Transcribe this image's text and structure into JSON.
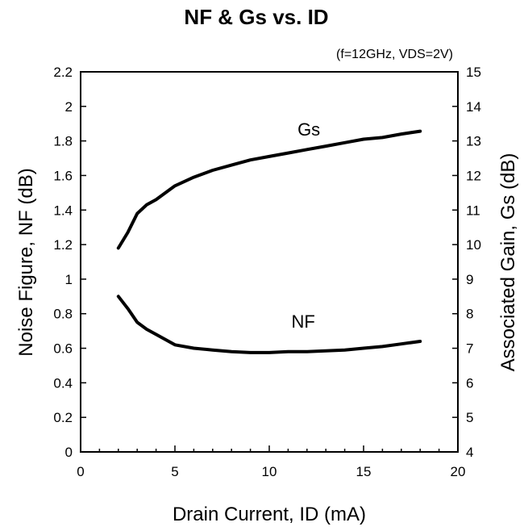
{
  "chart_data": {
    "type": "line",
    "title": "NF & Gs vs. ID",
    "condition": "(f=12GHz, VDS=2V)",
    "xlabel": "Drain Current, ID (mA)",
    "ylabel_left": "Noise Figure, NF (dB)",
    "ylabel_right": "Associated Gain, Gs (dB)",
    "xlim": [
      0,
      20
    ],
    "ylim_left": [
      0,
      2.2
    ],
    "ylim_right": [
      4,
      15
    ],
    "x_ticks": [
      "0",
      "5",
      "10",
      "15",
      "20"
    ],
    "y_ticks_left": [
      "0",
      "0.2",
      "0.4",
      "0.6",
      "0.8",
      "1",
      "1.2",
      "1.4",
      "1.6",
      "1.8",
      "2",
      "2.2"
    ],
    "y_ticks_right": [
      "4",
      "5",
      "6",
      "7",
      "8",
      "9",
      "10",
      "11",
      "12",
      "13",
      "14",
      "15"
    ],
    "grid": false,
    "series": [
      {
        "name": "NF",
        "axis": "left",
        "x": [
          2,
          2.5,
          3,
          3.5,
          4,
          5,
          6,
          7,
          8,
          9,
          10,
          11,
          12,
          13,
          14,
          15,
          16,
          17,
          18
        ],
        "y": [
          0.9,
          0.83,
          0.75,
          0.71,
          0.68,
          0.62,
          0.6,
          0.59,
          0.58,
          0.575,
          0.575,
          0.58,
          0.58,
          0.585,
          0.59,
          0.6,
          0.61,
          0.625,
          0.64
        ]
      },
      {
        "name": "Gs",
        "axis": "right",
        "x": [
          2,
          2.5,
          3,
          3.5,
          4,
          5,
          6,
          7,
          8,
          9,
          10,
          11,
          12,
          13,
          14,
          15,
          16,
          17,
          18
        ],
        "y": [
          9.9,
          10.35,
          10.9,
          11.15,
          11.3,
          11.7,
          11.95,
          12.15,
          12.3,
          12.45,
          12.55,
          12.65,
          12.75,
          12.85,
          12.95,
          13.05,
          13.1,
          13.2,
          13.28
        ]
      }
    ]
  }
}
